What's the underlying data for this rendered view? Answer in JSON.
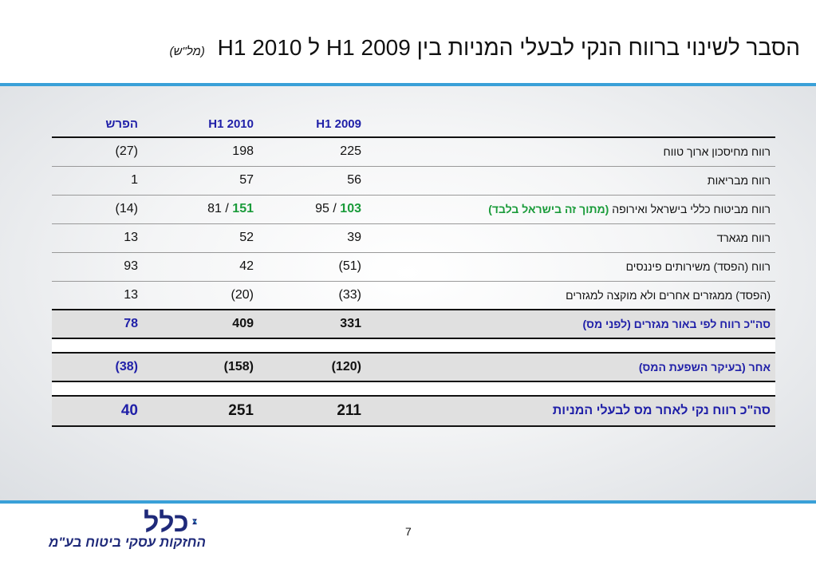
{
  "title": {
    "main": "הסבר לשינוי ברווח הנקי לבעלי המניות בין H1 2009 ל H1 2010",
    "unit": "(מל\"ש)"
  },
  "table": {
    "headers": {
      "h2009": "H1 2009",
      "h2010": "H1 2010",
      "diff": "הפרש"
    },
    "rows": [
      {
        "label": "רווח מחיסכון ארוך טווח",
        "h2009": "225",
        "h2010": "198",
        "diff": "(27)"
      },
      {
        "label": "רווח מבריאות",
        "h2009": "56",
        "h2010": "57",
        "diff": "1"
      },
      {
        "label": "רווח מביטוח כללי בישראל ואירופה",
        "label_note": "(מתוך זה בישראל בלבד)",
        "h2009": "95",
        "h2009_israel": "103",
        "h2010": "81",
        "h2010_israel": "151",
        "diff": "(14)"
      },
      {
        "label": "רווח מגארד",
        "h2009": "39",
        "h2010": "52",
        "diff": "13"
      },
      {
        "label": "רווח (הפסד) משירותים פיננסים",
        "h2009": "(51)",
        "h2010": "42",
        "diff": "93"
      },
      {
        "label": "(הפסד) ממגזרים אחרים ולא מוקצה למגזרים",
        "h2009": "(33)",
        "h2010": "(20)",
        "diff": "13"
      }
    ],
    "total_pretax": {
      "label": "סה\"כ רווח לפי באור מגזרים (לפני מס)",
      "h2009": "331",
      "h2010": "409",
      "diff": "78"
    },
    "other": {
      "label": "אחר (בעיקר השפעת המס)",
      "h2009": "(120)",
      "h2010": "(158)",
      "diff": "(38)"
    },
    "net": {
      "label": "סה\"כ רווח נקי לאחר מס לבעלי המניות",
      "h2009": "211",
      "h2010": "251",
      "diff": "40"
    }
  },
  "footer": {
    "page_number": "7",
    "logo_name": "כלל",
    "logo_subtitle": "החזקות עסקי ביטוח בע\"מ"
  },
  "colors": {
    "accent": "#3aa0d8",
    "header_blue": "#1f1fa8",
    "green": "#1a9b3a",
    "logo_blue": "#1f2a7a"
  }
}
